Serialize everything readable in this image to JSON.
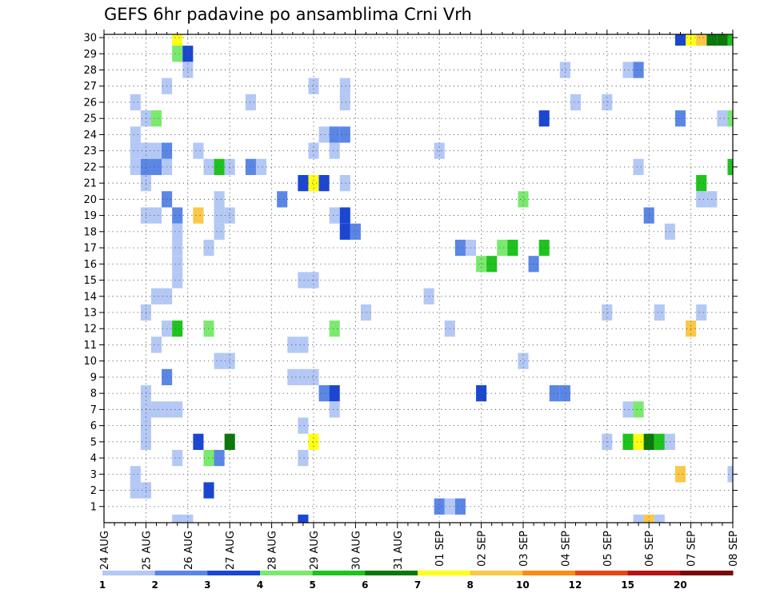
{
  "chart_data": {
    "type": "heatmap",
    "title": "GEFS 6hr padavine po ansamblima Crni Vrh",
    "xlabel": "",
    "ylabel": "",
    "x_tick_labels": [
      "24 AUG",
      "25 AUG",
      "26 AUG",
      "27 AUG",
      "28 AUG",
      "29 AUG",
      "30 AUG",
      "31 AUG",
      "01 SEP",
      "02 SEP",
      "03 SEP",
      "04 SEP",
      "05 SEP",
      "06 SEP",
      "07 SEP",
      "08 SEP"
    ],
    "y_tick_labels": [
      "1",
      "2",
      "3",
      "4",
      "5",
      "6",
      "7",
      "8",
      "9",
      "10",
      "11",
      "12",
      "13",
      "14",
      "15",
      "16",
      "17",
      "18",
      "19",
      "20",
      "21",
      "22",
      "23",
      "24",
      "25",
      "26",
      "27",
      "28",
      "29",
      "30"
    ],
    "xlim": [
      0,
      60
    ],
    "ylim": [
      0,
      30
    ],
    "x_unit": "6-hour step from 24 AUG 00Z",
    "grid": true,
    "colorbar": {
      "labels": [
        "1",
        "2",
        "3",
        "4",
        "5",
        "6",
        "7",
        "8",
        "10",
        "12",
        "15",
        "20"
      ],
      "colors": [
        "#b4c8f5",
        "#5a86e6",
        "#1a46d2",
        "#7aea6e",
        "#1ec31e",
        "#0a780a",
        "#ffff14",
        "#fac846",
        "#fa8c14",
        "#e64614",
        "#b41414",
        "#780a0a"
      ]
    },
    "cells": [
      [
        7,
        30,
        7
      ],
      [
        60,
        30,
        5
      ],
      [
        56,
        30,
        7
      ],
      [
        59,
        30,
        6
      ],
      [
        58,
        30,
        6
      ],
      [
        55,
        30,
        3
      ],
      [
        57,
        30,
        8
      ],
      [
        7,
        29,
        4
      ],
      [
        8,
        29,
        3
      ],
      [
        8,
        28,
        1
      ],
      [
        44,
        28,
        1
      ],
      [
        50,
        28,
        1
      ],
      [
        51,
        28,
        2
      ],
      [
        6,
        27,
        1
      ],
      [
        20,
        27,
        1
      ],
      [
        23,
        27,
        1
      ],
      [
        3,
        26,
        1
      ],
      [
        14,
        26,
        1
      ],
      [
        23,
        26,
        1
      ],
      [
        45,
        26,
        1
      ],
      [
        48,
        26,
        1
      ],
      [
        4,
        25,
        1
      ],
      [
        5,
        25,
        4
      ],
      [
        42,
        25,
        3
      ],
      [
        55,
        25,
        2
      ],
      [
        59,
        25,
        1
      ],
      [
        60,
        25,
        4
      ],
      [
        3,
        24,
        1
      ],
      [
        21,
        24,
        1
      ],
      [
        22,
        24,
        2
      ],
      [
        23,
        24,
        2
      ],
      [
        3,
        23,
        1
      ],
      [
        4,
        23,
        1
      ],
      [
        5,
        23,
        1
      ],
      [
        6,
        23,
        2
      ],
      [
        9,
        23,
        1
      ],
      [
        20,
        23,
        1
      ],
      [
        22,
        23,
        1
      ],
      [
        32,
        23,
        1
      ],
      [
        3,
        22,
        1
      ],
      [
        4,
        22,
        2
      ],
      [
        5,
        22,
        2
      ],
      [
        6,
        22,
        1
      ],
      [
        10,
        22,
        1
      ],
      [
        11,
        22,
        5
      ],
      [
        12,
        22,
        1
      ],
      [
        14,
        22,
        2
      ],
      [
        15,
        22,
        1
      ],
      [
        51,
        22,
        1
      ],
      [
        60,
        22,
        5
      ],
      [
        4,
        21,
        1
      ],
      [
        19,
        21,
        3
      ],
      [
        20,
        21,
        7
      ],
      [
        21,
        21,
        3
      ],
      [
        23,
        21,
        1
      ],
      [
        57,
        21,
        5
      ],
      [
        6,
        20,
        2
      ],
      [
        11,
        20,
        1
      ],
      [
        17,
        20,
        2
      ],
      [
        40,
        20,
        4
      ],
      [
        57,
        20,
        1
      ],
      [
        58,
        20,
        1
      ],
      [
        4,
        19,
        1
      ],
      [
        5,
        19,
        1
      ],
      [
        7,
        19,
        2
      ],
      [
        9,
        19,
        8
      ],
      [
        11,
        19,
        1
      ],
      [
        12,
        19,
        1
      ],
      [
        22,
        19,
        1
      ],
      [
        23,
        19,
        3
      ],
      [
        52,
        19,
        2
      ],
      [
        7,
        18,
        1
      ],
      [
        11,
        18,
        1
      ],
      [
        23,
        18,
        3
      ],
      [
        24,
        18,
        2
      ],
      [
        54,
        18,
        1
      ],
      [
        7,
        17,
        1
      ],
      [
        10,
        17,
        1
      ],
      [
        34,
        17,
        2
      ],
      [
        35,
        17,
        1
      ],
      [
        38,
        17,
        4
      ],
      [
        39,
        17,
        5
      ],
      [
        42,
        17,
        5
      ],
      [
        7,
        16,
        1
      ],
      [
        36,
        16,
        4
      ],
      [
        37,
        16,
        5
      ],
      [
        41,
        16,
        2
      ],
      [
        7,
        15,
        1
      ],
      [
        19,
        15,
        1
      ],
      [
        20,
        15,
        1
      ],
      [
        5,
        14,
        1
      ],
      [
        6,
        14,
        1
      ],
      [
        31,
        14,
        1
      ],
      [
        4,
        13,
        1
      ],
      [
        25,
        13,
        1
      ],
      [
        48,
        13,
        1
      ],
      [
        53,
        13,
        1
      ],
      [
        57,
        13,
        1
      ],
      [
        6,
        12,
        1
      ],
      [
        7,
        12,
        5
      ],
      [
        10,
        12,
        4
      ],
      [
        22,
        12,
        4
      ],
      [
        33,
        12,
        1
      ],
      [
        56,
        12,
        8
      ],
      [
        5,
        11,
        1
      ],
      [
        18,
        11,
        1
      ],
      [
        19,
        11,
        1
      ],
      [
        11,
        10,
        1
      ],
      [
        12,
        10,
        1
      ],
      [
        40,
        10,
        1
      ],
      [
        6,
        9,
        2
      ],
      [
        18,
        9,
        1
      ],
      [
        19,
        9,
        1
      ],
      [
        20,
        9,
        1
      ],
      [
        4,
        8,
        1
      ],
      [
        21,
        8,
        2
      ],
      [
        22,
        8,
        3
      ],
      [
        36,
        8,
        3
      ],
      [
        43,
        8,
        2
      ],
      [
        44,
        8,
        2
      ],
      [
        4,
        7,
        1
      ],
      [
        5,
        7,
        1
      ],
      [
        6,
        7,
        1
      ],
      [
        7,
        7,
        1
      ],
      [
        22,
        7,
        1
      ],
      [
        50,
        7,
        1
      ],
      [
        51,
        7,
        4
      ],
      [
        4,
        6,
        1
      ],
      [
        19,
        6,
        1
      ],
      [
        4,
        5,
        1
      ],
      [
        9,
        5,
        3
      ],
      [
        12,
        5,
        6
      ],
      [
        20,
        5,
        7
      ],
      [
        48,
        5,
        1
      ],
      [
        50,
        5,
        5
      ],
      [
        51,
        5,
        7
      ],
      [
        52,
        5,
        6
      ],
      [
        53,
        5,
        5
      ],
      [
        54,
        5,
        1
      ],
      [
        7,
        4,
        1
      ],
      [
        10,
        4,
        4
      ],
      [
        11,
        4,
        2
      ],
      [
        19,
        4,
        1
      ],
      [
        3,
        3,
        1
      ],
      [
        55,
        3,
        8
      ],
      [
        60,
        3,
        1
      ],
      [
        3,
        2,
        1
      ],
      [
        4,
        2,
        1
      ],
      [
        10,
        2,
        3
      ],
      [
        32,
        1,
        2
      ],
      [
        33,
        1,
        1
      ],
      [
        34,
        1,
        2
      ],
      [
        7,
        0,
        1
      ],
      [
        8,
        0,
        1
      ],
      [
        19,
        0,
        3
      ],
      [
        51,
        0,
        1
      ],
      [
        52,
        0,
        8
      ],
      [
        53,
        0,
        1
      ]
    ]
  }
}
